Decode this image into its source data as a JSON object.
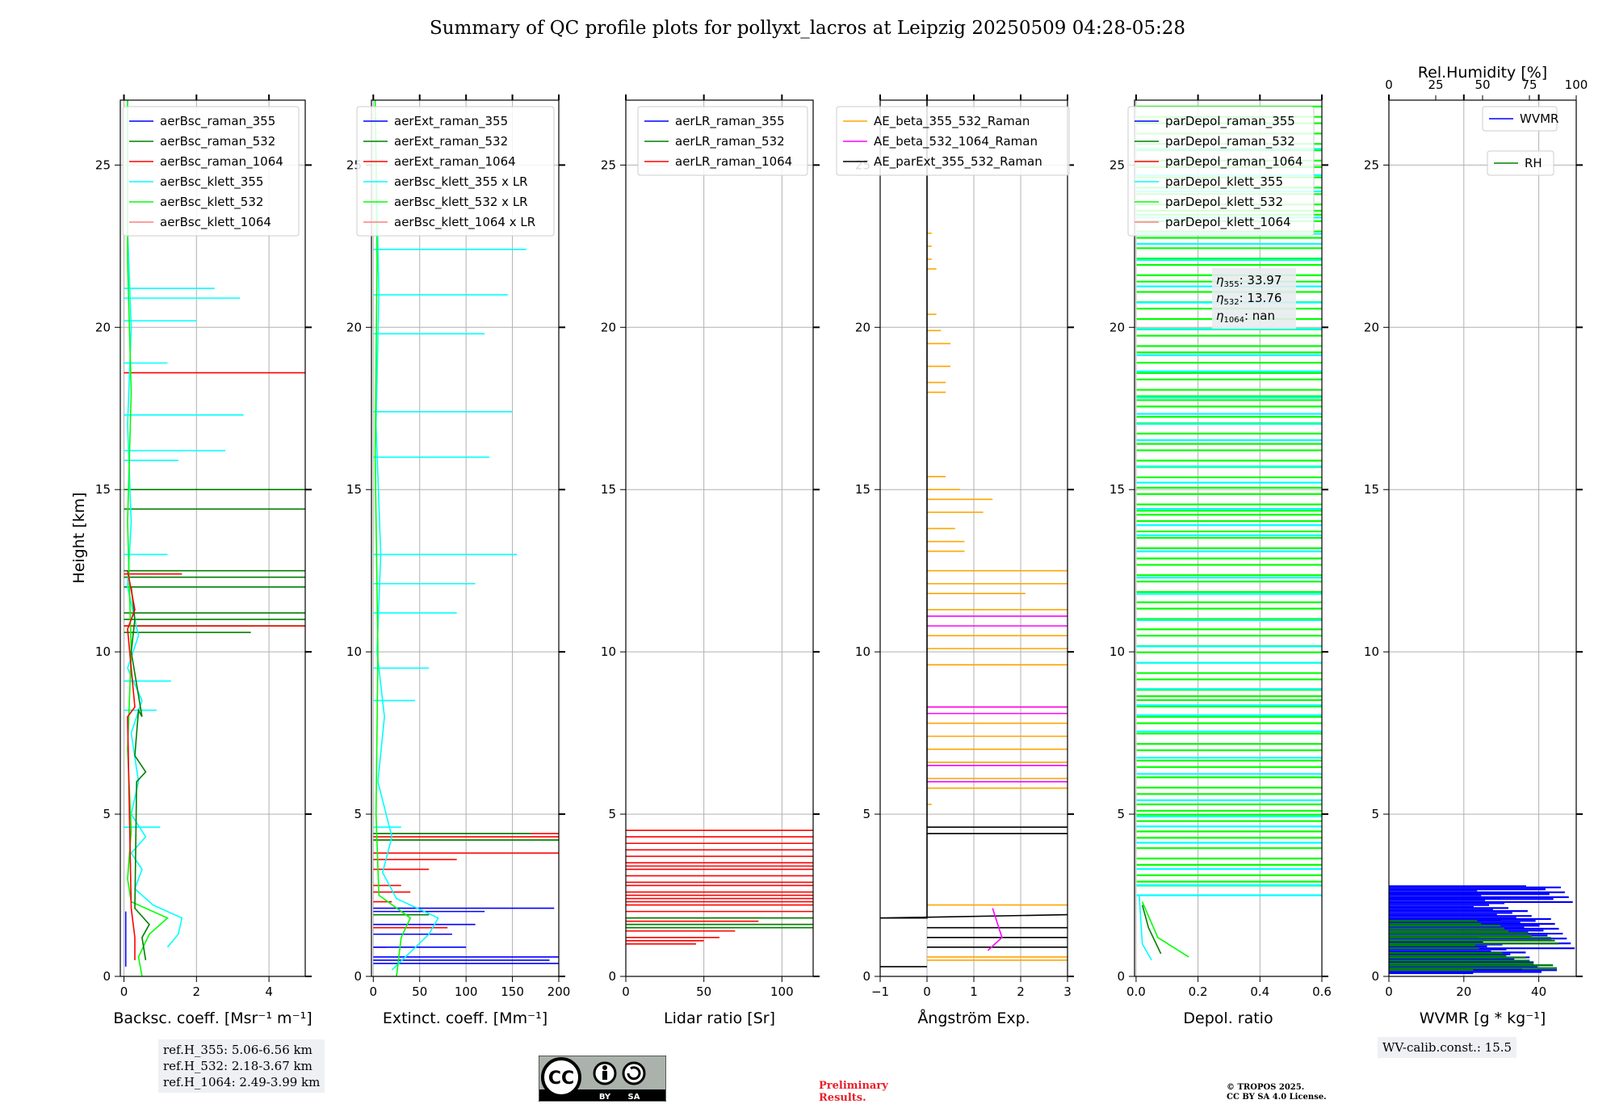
{
  "title": "Summary of QC profile plots for pollyxt_lacros at Leipzig 20250509 04:28-05:28",
  "height_axis": {
    "label": "Height [km]",
    "ylim": [
      0,
      27
    ],
    "ticks": [
      0,
      5,
      10,
      15,
      20,
      25
    ]
  },
  "colors": {
    "blue": "#0000ff",
    "green": "#008000",
    "red": "#ff0000",
    "cyan": "#00ffff",
    "lime": "#00ff00",
    "salmon": "#ff7f7f",
    "orange": "#ffa500",
    "magenta": "#ff00ff",
    "black": "#000000",
    "grid": "#b0b0b0"
  },
  "ref_heights": [
    "ref.H_355: 5.06-6.56 km",
    "ref.H_532: 2.18-3.67 km",
    "ref.H_1064: 2.49-3.99 km"
  ],
  "eta": {
    "e355": "33.97",
    "e532": "13.76",
    "e1064": "nan"
  },
  "wv_calib": "WV-calib.const.: 15.5",
  "license": {
    "cc": "CC",
    "by": "BY",
    "sa": "SA"
  },
  "preliminary": [
    "Preliminary",
    "Results."
  ],
  "copyright": [
    "© TROPOS 2025.",
    "CC BY SA 4.0 License."
  ],
  "chart_data": [
    {
      "id": "bsc",
      "type": "line",
      "xlabel": "Backsc. coeff. [Msr⁻¹ m⁻¹]",
      "xlim": [
        -0.1,
        5
      ],
      "xticks": [
        0,
        2,
        4
      ],
      "legend": [
        "aerBsc_raman_355",
        "aerBsc_raman_532",
        "aerBsc_raman_1064",
        "aerBsc_klett_355",
        "aerBsc_klett_532",
        "aerBsc_klett_1064"
      ],
      "series": [
        {
          "name": "aerBsc_klett_355",
          "color": "cyan",
          "points": [
            [
              1.2,
              0.9
            ],
            [
              1.5,
              1.3
            ],
            [
              1.6,
              1.8
            ],
            [
              0.8,
              2.2
            ],
            [
              0.3,
              2.7
            ],
            [
              0.5,
              3.3
            ],
            [
              0.2,
              3.8
            ],
            [
              0.6,
              4.3
            ],
            [
              0.2,
              5.0
            ],
            [
              0.4,
              6.0
            ],
            [
              0.2,
              7.5
            ],
            [
              0.5,
              8.5
            ],
            [
              0.1,
              9.5
            ],
            [
              0.4,
              10.5
            ],
            [
              0.1,
              12.0
            ],
            [
              0.2,
              14.0
            ],
            [
              0.1,
              17.0
            ],
            [
              0.2,
              20.0
            ],
            [
              0.1,
              23.0
            ],
            [
              0.1,
              27.0
            ]
          ]
        },
        {
          "name": "aerBsc_klett_532",
          "color": "lime",
          "points": [
            [
              0.5,
              0.0
            ],
            [
              0.4,
              0.6
            ],
            [
              0.7,
              1.3
            ],
            [
              1.2,
              1.8
            ],
            [
              0.2,
              2.3
            ],
            [
              0.1,
              3.0
            ],
            [
              0.2,
              4.5
            ],
            [
              0.1,
              7.0
            ],
            [
              0.2,
              10.0
            ],
            [
              0.1,
              14.0
            ],
            [
              0.2,
              18.0
            ],
            [
              0.1,
              22.0
            ],
            [
              0.1,
              27.0
            ]
          ]
        },
        {
          "name": "aerBsc_raman_532",
          "color": "green",
          "points": [
            [
              0.6,
              0.5
            ],
            [
              0.5,
              1.2
            ],
            [
              0.7,
              1.6
            ],
            [
              0.3,
              2.1
            ],
            [
              0.35,
              6.0
            ],
            [
              0.6,
              6.3
            ],
            [
              0.3,
              6.8
            ],
            [
              0.4,
              8.2
            ],
            [
              0.5,
              8.0
            ],
            [
              0.2,
              10.0
            ],
            [
              0.3,
              11.0
            ],
            [
              0.2,
              12.0
            ]
          ]
        },
        {
          "name": "aerBsc_raman_1064",
          "color": "red",
          "points": [
            [
              0.3,
              0.5
            ],
            [
              0.3,
              1.2
            ],
            [
              0.2,
              2.1
            ],
            [
              0.1,
              8.0
            ],
            [
              0.3,
              8.3
            ],
            [
              0.1,
              10.7
            ],
            [
              0.3,
              11.3
            ],
            [
              0.1,
              12.5
            ]
          ]
        },
        {
          "name": "aerBsc_raman_355",
          "color": "blue",
          "points": [
            [
              0.05,
              0.3
            ],
            [
              0.05,
              2.0
            ]
          ]
        }
      ],
      "spikes": [
        {
          "color": "cyan",
          "y": [
            21.2,
            20.9,
            20.2,
            18.9,
            17.3,
            16.2,
            15.9,
            13.0,
            12.3,
            9.1,
            8.2,
            4.6
          ],
          "x": [
            2.5,
            3.2,
            2.0,
            1.2,
            3.3,
            2.8,
            1.5,
            1.2,
            0.8,
            1.3,
            0.9,
            1.0
          ]
        },
        {
          "color": "green",
          "y": [
            15.0,
            14.4,
            12.5,
            12.3,
            12.0,
            11.2,
            11.0,
            10.8,
            10.6
          ],
          "x": [
            5,
            5,
            5,
            5,
            5,
            5,
            5,
            5,
            3.5
          ]
        },
        {
          "color": "red",
          "y": [
            18.6,
            12.4,
            10.8
          ],
          "x": [
            5,
            1.6,
            5
          ]
        }
      ]
    },
    {
      "id": "ext",
      "type": "line",
      "xlabel": "Extinct. coeff. [Mm⁻¹]",
      "xlim": [
        -2,
        200
      ],
      "xticks": [
        0,
        50,
        100,
        150,
        200
      ],
      "legend": [
        "aerExt_raman_355",
        "aerExt_raman_532",
        "aerExt_raman_1064",
        "aerBsc_klett_355 x LR",
        "aerBsc_klett_532 x LR",
        "aerBsc_klett_1064 x LR"
      ],
      "series": [
        {
          "name": "aerBsc_klett_355 x LR",
          "color": "cyan",
          "points": [
            [
              20,
              0.2
            ],
            [
              60,
              1.3
            ],
            [
              70,
              1.8
            ],
            [
              25,
              2.4
            ],
            [
              10,
              3.2
            ],
            [
              20,
              4.3
            ],
            [
              5,
              6.0
            ],
            [
              12,
              8.0
            ],
            [
              4,
              10.0
            ],
            [
              8,
              13.0
            ],
            [
              3,
              17.0
            ],
            [
              6,
              21.0
            ],
            [
              2,
              27.0
            ]
          ]
        },
        {
          "name": "aerBsc_klett_532 x LR",
          "color": "lime",
          "points": [
            [
              25,
              0.0
            ],
            [
              30,
              1.2
            ],
            [
              40,
              1.8
            ],
            [
              6,
              2.5
            ],
            [
              3,
              5.0
            ],
            [
              5,
              10.0
            ],
            [
              2,
              16.0
            ],
            [
              4,
              22.0
            ],
            [
              2,
              27.0
            ]
          ]
        }
      ],
      "spikes": [
        {
          "color": "cyan",
          "y": [
            22.4,
            21.0,
            19.8,
            17.4,
            16.0,
            13.0,
            12.1,
            11.2,
            9.5,
            8.5,
            4.6
          ],
          "x": [
            165,
            145,
            120,
            150,
            125,
            155,
            110,
            90,
            60,
            45,
            30
          ]
        },
        {
          "color": "red",
          "y": [
            4.4,
            4.3,
            4.2,
            3.8,
            3.6,
            3.3,
            2.8,
            2.6,
            2.3,
            1.5,
            0.9
          ],
          "x": [
            200,
            200,
            200,
            200,
            90,
            60,
            30,
            40,
            20,
            80,
            15
          ]
        },
        {
          "color": "green",
          "y": [
            4.4,
            4.2,
            1.9
          ],
          "x": [
            170,
            200,
            60
          ]
        },
        {
          "color": "blue",
          "y": [
            2.1,
            2.0,
            1.6,
            1.3,
            0.9,
            0.6,
            0.5,
            0.4
          ],
          "x": [
            195,
            120,
            110,
            85,
            100,
            200,
            190,
            200
          ]
        }
      ]
    },
    {
      "id": "lr",
      "type": "line",
      "xlabel": "Lidar ratio [Sr]",
      "xlim": [
        0,
        120
      ],
      "xticks": [
        0,
        50,
        100
      ],
      "legend": [
        "aerLR_raman_355",
        "aerLR_raman_532",
        "aerLR_raman_1064"
      ],
      "series": [],
      "spikes": [
        {
          "color": "red",
          "y": [
            4.5,
            4.3,
            4.1,
            3.9,
            3.7,
            3.5,
            3.4,
            3.3,
            3.1,
            2.9,
            2.8,
            2.6,
            2.5,
            2.4,
            2.3,
            2.2,
            2.0,
            1.8,
            1.7,
            1.6,
            1.4,
            1.2,
            1.1,
            1.0
          ],
          "x": [
            120,
            120,
            120,
            120,
            120,
            120,
            120,
            120,
            120,
            120,
            120,
            120,
            120,
            120,
            120,
            120,
            120,
            120,
            85,
            120,
            70,
            60,
            50,
            45
          ]
        },
        {
          "color": "green",
          "y": [
            1.8,
            1.6,
            1.5
          ],
          "x": [
            120,
            120,
            120
          ]
        }
      ]
    },
    {
      "id": "ae",
      "type": "line",
      "xlabel": "Ångström Exp.",
      "xlim": [
        -1,
        3
      ],
      "xticks": [
        -1,
        0,
        1,
        2,
        3
      ],
      "legend": [
        "AE_beta_355_532_Raman",
        "AE_beta_532_1064_Raman",
        "AE_parExt_355_532_Raman"
      ],
      "series": [
        {
          "name": "AE_parExt_355_532_Raman",
          "color": "black",
          "points": [
            [
              0.0,
              27.0
            ],
            [
              0.0,
              4.7
            ],
            [
              0.0,
              2.1
            ],
            [
              0.0,
              1.8
            ],
            [
              -1.0,
              1.8
            ],
            [
              3,
              1.9
            ]
          ]
        },
        {
          "name": "AE_beta_532_1064_Raman",
          "color": "magenta",
          "points": [
            [
              1.3,
              0.8
            ],
            [
              1.6,
              1.2
            ],
            [
              1.4,
              2.1
            ]
          ]
        }
      ],
      "spikes": [
        {
          "color": "orange",
          "y": [
            22.9,
            22.5,
            22.1,
            21.8,
            20.4,
            19.9,
            19.5,
            18.8,
            18.3,
            18.0,
            15.4,
            15.0,
            14.7,
            14.3,
            13.8,
            13.4,
            13.1,
            12.5,
            12.1,
            11.8,
            11.3,
            10.5,
            10.1,
            9.6,
            8.3,
            7.8,
            7.4,
            7.0,
            6.6,
            6.1,
            5.8,
            5.3,
            2.2,
            0.6,
            0.5
          ],
          "x": [
            0.1,
            0.1,
            0.1,
            0.2,
            0.2,
            0.3,
            0.5,
            0.5,
            0.4,
            0.4,
            0.4,
            0.7,
            1.4,
            1.2,
            0.6,
            0.8,
            0.8,
            3,
            3,
            2.1,
            3,
            3,
            3,
            3,
            3,
            3,
            3,
            3,
            3,
            3,
            3,
            0.1,
            3,
            3,
            3
          ]
        },
        {
          "color": "magenta",
          "y": [
            11.1,
            10.8,
            8.3,
            8.1,
            6.5,
            6.0,
            4.4
          ],
          "x": [
            3,
            3,
            3,
            3,
            3,
            3,
            0.0
          ]
        },
        {
          "color": "black",
          "y": [
            4.6,
            4.4,
            1.5,
            1.2,
            0.9,
            0.3
          ],
          "x": [
            3,
            3,
            3,
            3,
            3,
            -1
          ]
        }
      ]
    },
    {
      "id": "depol",
      "type": "line",
      "xlabel": "Depol. ratio",
      "xlim": [
        -0.005,
        0.6
      ],
      "xticks": [
        0.0,
        0.2,
        0.4,
        0.6
      ],
      "legend": [
        "parDepol_raman_355",
        "parDepol_raman_532",
        "parDepol_raman_1064",
        "parDepol_klett_355",
        "parDepol_klett_532",
        "parDepol_klett_1064"
      ],
      "series": [
        {
          "name": "parDepol_klett_355",
          "color": "cyan",
          "points": [
            [
              0.05,
              0.5
            ],
            [
              0.02,
              1.0
            ],
            [
              0.01,
              2.5
            ]
          ]
        },
        {
          "name": "parDepol_klett_532",
          "color": "lime",
          "points": [
            [
              0.17,
              0.6
            ],
            [
              0.07,
              1.2
            ],
            [
              0.02,
              2.3
            ]
          ]
        },
        {
          "name": "parDepol_raman_532",
          "color": "green",
          "points": [
            [
              0.08,
              0.7
            ],
            [
              0.04,
              1.5
            ],
            [
              0.02,
              2.2
            ]
          ]
        }
      ],
      "fill": [
        {
          "color": "lime",
          "y": [
            2.8,
            27
          ],
          "count": 95
        },
        {
          "color": "cyan",
          "y": [
            2.5,
            26
          ],
          "count": 40
        }
      ]
    },
    {
      "id": "wvmr",
      "type": "line",
      "xlabel": "WVMR [g * kg⁻¹]",
      "xlim": [
        0,
        50
      ],
      "xticks": [
        0,
        20,
        40
      ],
      "top_axis": {
        "label": "Rel.Humidity [%]",
        "ticks": [
          0,
          25,
          50,
          75,
          100
        ]
      },
      "legend": [
        "WVMR",
        "RH"
      ],
      "series": [],
      "fill": [
        {
          "color": "blue",
          "y": [
            0.1,
            2.8
          ],
          "count": 60
        },
        {
          "color": "green",
          "y": [
            0.2,
            1.8
          ],
          "count": 20
        }
      ]
    }
  ]
}
